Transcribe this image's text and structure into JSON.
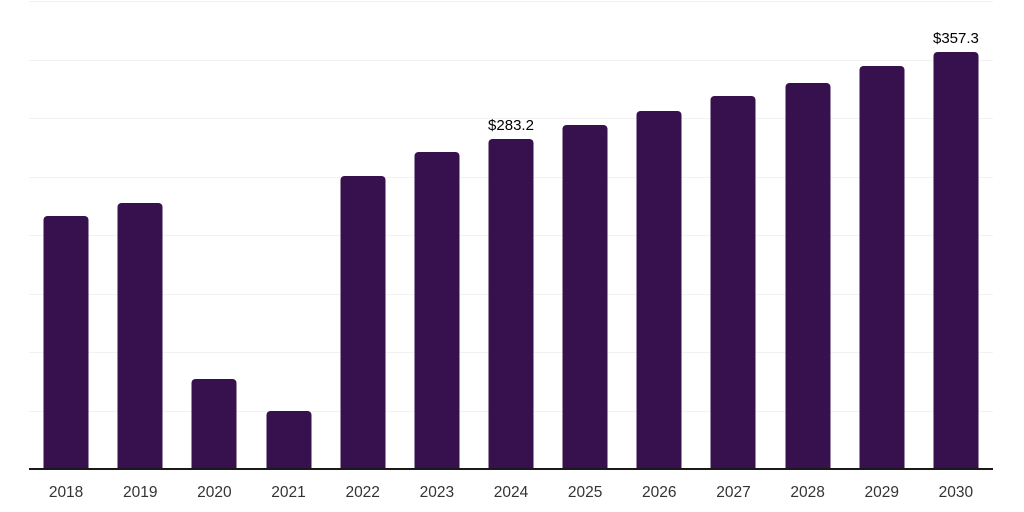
{
  "chart_data": {
    "type": "bar",
    "title": "",
    "xlabel": "",
    "ylabel": "",
    "categories": [
      "2018",
      "2019",
      "2020",
      "2021",
      "2022",
      "2023",
      "2024",
      "2025",
      "2026",
      "2027",
      "2028",
      "2029",
      "2030"
    ],
    "values": [
      217,
      228,
      78,
      50.5,
      251,
      272,
      283.2,
      295,
      307,
      320,
      331,
      345,
      357.3
    ],
    "annotations": [
      {
        "index": 6,
        "text": "$283.2"
      },
      {
        "index": 12,
        "text": "$357.3"
      }
    ],
    "value_prefix": "$",
    "ylim": [
      0,
      400
    ],
    "gridline_step": 50,
    "grid": true,
    "legend": false,
    "y_axis_labels_visible": false
  },
  "style": {
    "bar_color": "#36114E",
    "gridline_color": "#f2f2f2",
    "axis_line_color": "#1a1a1a",
    "tick_label_color": "#333333",
    "annotation_color": "#000000",
    "background_color": "#ffffff"
  }
}
